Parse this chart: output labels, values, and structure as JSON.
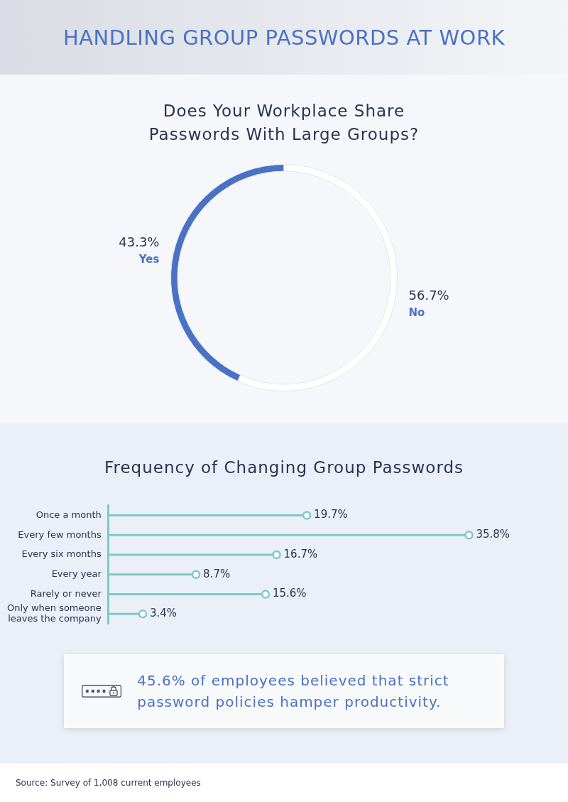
{
  "chart_data": [
    {
      "type": "donut",
      "title": "HANDLING GROUP PASSWORDS AT WORK",
      "subtitle": "Does Your Workplace Share Passwords With Large Groups?",
      "categories": [
        "Yes",
        "No"
      ],
      "values": [
        43.3,
        56.7
      ],
      "colors": [
        "#4a72c4",
        "#ffffff"
      ],
      "value_labels": [
        "43.3%",
        "56.7%"
      ]
    },
    {
      "type": "lollipop",
      "title": "Frequency of Changing Group Passwords",
      "orientation": "horizontal",
      "categories": [
        "Once a month",
        "Every few months",
        "Every six months",
        "Every year",
        "Rarely or never",
        "Only when someone leaves the company"
      ],
      "values": [
        19.7,
        35.8,
        16.7,
        8.7,
        15.6,
        3.4
      ],
      "color": "#7ecac4",
      "marker": "circle",
      "value_labels": [
        "19.7%",
        "35.8%",
        "16.7%",
        "8.7%",
        "15.6%",
        "3.4%"
      ]
    },
    {
      "type": "other",
      "annotations": [
        "45.6% of employees believed that strict password policies hamper productivity.",
        "Source: Survey of 1,008 current employees"
      ]
    }
  ]
}
